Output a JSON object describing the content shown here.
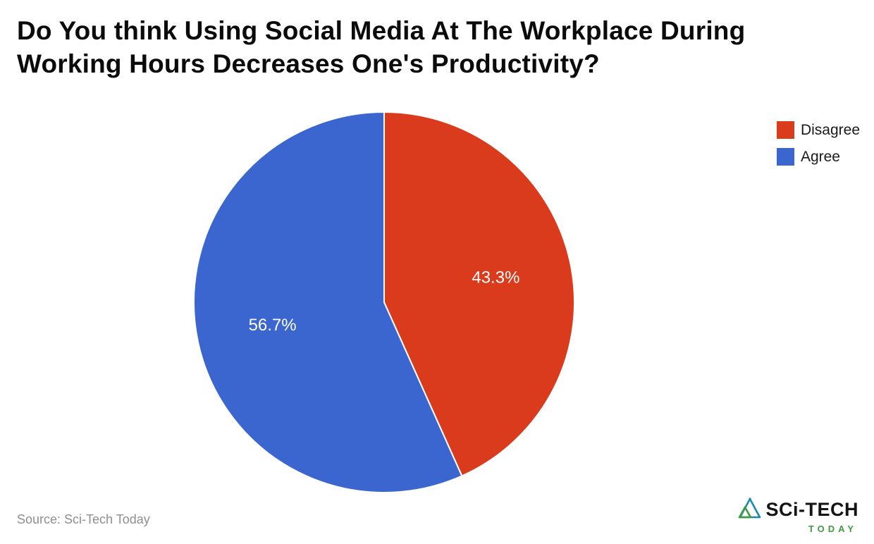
{
  "title": "Do You think Using Social Media At The Workplace During Working Hours Decreases One's Productivity?",
  "source": "Source: Sci-Tech Today",
  "logo": {
    "line1": "SCi-TECH",
    "line2": "TODAY",
    "accent_green": "#3f9b3f",
    "accent_blue": "#1d87b5"
  },
  "chart_data": {
    "type": "pie",
    "labels": [
      "Disagree",
      "Agree"
    ],
    "values": [
      43.3,
      56.7
    ],
    "value_labels": [
      "43.3%",
      "56.7%"
    ],
    "colors": [
      "#d93b1c",
      "#3b66d0"
    ],
    "title": "Do You think Using Social Media At The Workplace During Working Hours Decreases One's Productivity?",
    "legend_position": "top-right",
    "start_angle_deg": 0,
    "direction": "clockwise",
    "slice_divider_color": "#ffffff",
    "label_radius_fraction": 0.6,
    "label_font_px": 24
  }
}
